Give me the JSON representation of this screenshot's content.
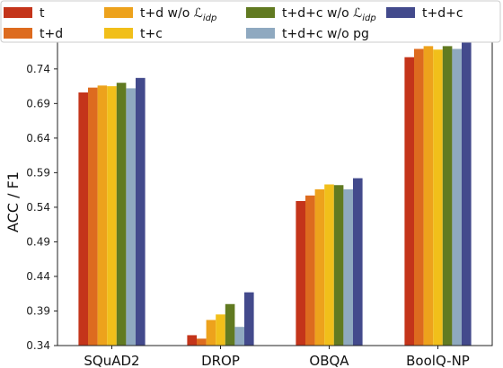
{
  "chart_data": {
    "type": "bar",
    "ylabel": "ACC / F1",
    "xlabel": "",
    "ylim": [
      0.34,
      0.78
    ],
    "yticks": [
      "0.34",
      "0.39",
      "0.44",
      "0.49",
      "0.54",
      "0.59",
      "0.64",
      "0.69",
      "0.74"
    ],
    "grid": false,
    "legend_position": "top",
    "categories": [
      "SQuAD2",
      "DROP",
      "OBQA",
      "BoolQ-NP"
    ],
    "series": [
      {
        "name": "t",
        "color": "#c4341a",
        "values": [
          0.706,
          0.355,
          0.549,
          0.757
        ]
      },
      {
        "name": "t+d",
        "color": "#dd6b1f",
        "values": [
          0.713,
          0.35,
          0.557,
          0.769
        ]
      },
      {
        "name": "t+d w/o ℒidp",
        "color": "#eda21c",
        "values": [
          0.716,
          0.377,
          0.566,
          0.773
        ]
      },
      {
        "name": "t+c",
        "color": "#f1bf1a",
        "values": [
          0.715,
          0.385,
          0.573,
          0.768
        ]
      },
      {
        "name": "t+d+c w/o ℒidp",
        "color": "#617a21",
        "values": [
          0.72,
          0.4,
          0.572,
          0.773
        ]
      },
      {
        "name": "t+d+c w/o pg",
        "color": "#8fa9c0",
        "values": [
          0.712,
          0.367,
          0.566,
          0.769
        ]
      },
      {
        "name": "t+d+c",
        "color": "#434a8c",
        "values": [
          0.727,
          0.417,
          0.582,
          0.781
        ]
      }
    ]
  }
}
